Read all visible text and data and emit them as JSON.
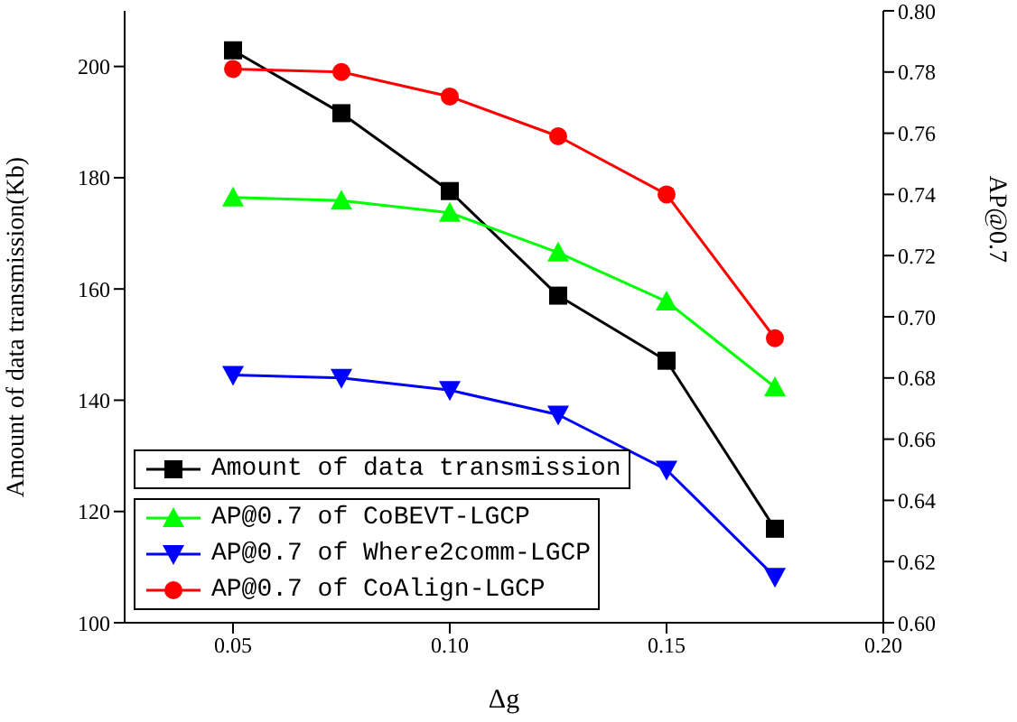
{
  "chart_data": {
    "type": "line",
    "xlabel": "Δg",
    "ylabel": "Amount of data transmission(Kb)",
    "y2label": "AP@0.7",
    "x": [
      0.05,
      0.075,
      0.1,
      0.125,
      0.15,
      0.175
    ],
    "xlim": [
      0.025,
      0.2
    ],
    "xticks": [
      0.05,
      {
        "value": 0.1,
        "label": "0.10"
      },
      0.15,
      {
        "value": 0.2,
        "label": "0.20"
      }
    ],
    "ylim": [
      100,
      210
    ],
    "yticks": [
      100,
      120,
      140,
      160,
      180,
      200
    ],
    "y2lim": [
      0.6,
      0.8
    ],
    "y2ticks": [
      {
        "value": 0.6,
        "label": "0.60"
      },
      0.62,
      0.64,
      0.66,
      0.68,
      {
        "value": 0.7,
        "label": "0.70"
      },
      0.72,
      0.74,
      0.76,
      0.78,
      {
        "value": 0.8,
        "label": "0.80"
      }
    ],
    "legend": "bottom left",
    "grid": false,
    "series": [
      {
        "name": "Amount of data transmission",
        "color": "#000000",
        "marker": "square",
        "values": [
          202.9,
          191.6,
          177.6,
          158.8,
          147.1,
          116.9
        ]
      },
      {
        "name": "AP@0.7 of CoBEVT-LGCP",
        "color": "#00ff00",
        "marker": "triangle",
        "axis": "y2",
        "values": [
          0.739,
          0.738,
          0.734,
          0.721,
          0.705,
          0.677
        ]
      },
      {
        "name": "AP@0.7 of Where2comm-LGCP",
        "color": "#0000ff",
        "marker": "triangle-down",
        "axis": "y2",
        "values": [
          0.681,
          0.68,
          0.676,
          0.668,
          0.65,
          0.615
        ]
      },
      {
        "name": "AP@0.7 of CoAlign-LGCP",
        "color": "#ff0000",
        "marker": "circle",
        "axis": "y2",
        "values": [
          0.781,
          0.78,
          0.772,
          0.759,
          0.74,
          0.693
        ]
      }
    ]
  }
}
